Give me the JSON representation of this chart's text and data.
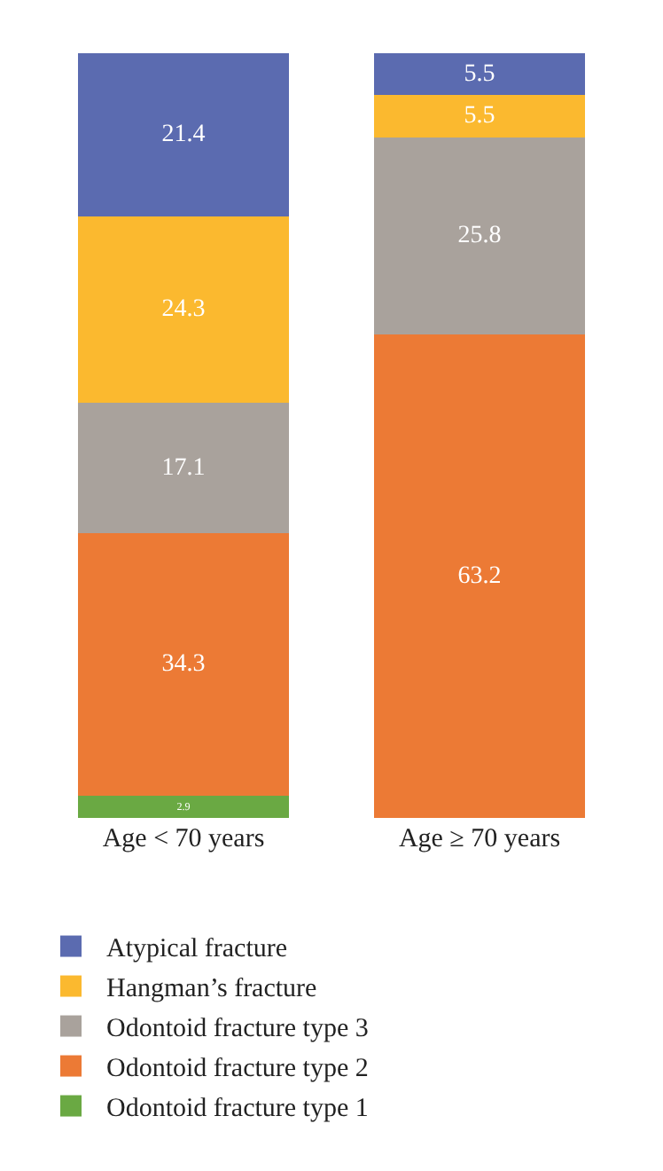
{
  "chart_data": {
    "type": "bar",
    "stacked": true,
    "categories": [
      "Age < 70 years",
      "Age ≥ 70 years"
    ],
    "series": [
      {
        "name": "Odontoid fracture type 1",
        "color": "#6aa943",
        "values": [
          2.9,
          null
        ]
      },
      {
        "name": "Odontoid fracture type 2",
        "color": "#ec7a35",
        "values": [
          34.3,
          63.2
        ]
      },
      {
        "name": "Odontoid fracture type 3",
        "color": "#a9a29c",
        "values": [
          17.1,
          25.8
        ]
      },
      {
        "name": "Hangman’s fracture",
        "color": "#fbb92f",
        "values": [
          24.3,
          5.5
        ]
      },
      {
        "name": "Atypical fracture",
        "color": "#5b6bb0",
        "values": [
          21.4,
          5.5
        ]
      }
    ],
    "ylim": [
      0,
      100
    ],
    "tick_labels": "x",
    "data_labels": true,
    "legend": "bottom",
    "grid": false
  }
}
